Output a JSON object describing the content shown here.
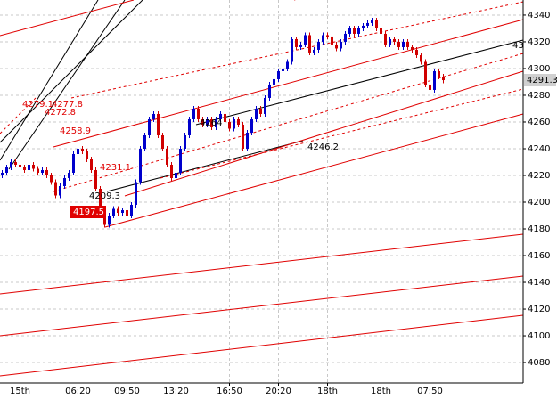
{
  "chart_data": {
    "type": "candlestick",
    "categories": [
      null,
      null,
      null,
      null,
      "15th",
      null,
      null,
      null,
      null,
      null,
      null,
      null,
      null,
      null,
      null,
      null,
      null,
      "06:20",
      null,
      null,
      null,
      null,
      null,
      null,
      null,
      null,
      null,
      null,
      "09:50",
      null,
      null,
      null,
      null,
      null,
      null,
      null,
      null,
      null,
      null,
      "13:20",
      null,
      null,
      null,
      null,
      null,
      null,
      null,
      null,
      null,
      null,
      null,
      "16:50",
      null,
      null,
      null,
      null,
      null,
      null,
      null,
      null,
      null,
      null,
      "20:20",
      null,
      null,
      null,
      null,
      null,
      null,
      null,
      null,
      null,
      null,
      "18th",
      null,
      null,
      null,
      null,
      null,
      null,
      null,
      null,
      null,
      null,
      null,
      "18th",
      null,
      null,
      null,
      null,
      null,
      null,
      null,
      null,
      null,
      null,
      "07:50",
      null,
      null,
      null
    ],
    "open": [
      4220,
      4222,
      4226,
      4230,
      4228,
      4226,
      4224,
      4228,
      4225,
      4222,
      4224,
      4220,
      4215,
      4205,
      4212,
      4218,
      4222,
      4236,
      4240,
      4238,
      4232,
      4224,
      4210,
      4195,
      4183,
      4190,
      4195,
      4192,
      4194,
      4190,
      4198,
      4215,
      4240,
      4250,
      4262,
      4266,
      4250,
      4240,
      4228,
      4218,
      4222,
      4240,
      4250,
      4262,
      4270,
      4262,
      4258,
      4262,
      4256,
      4262,
      4266,
      4260,
      4255,
      4262,
      4258,
      4240,
      4252,
      4262,
      4270,
      4266,
      4278,
      4288,
      4292,
      4298,
      4300,
      4305,
      4322,
      4316,
      4318,
      4325,
      4312,
      4314,
      4320,
      4325,
      4324,
      4318,
      4315,
      4320,
      4326,
      4330,
      4326,
      4330,
      4332,
      4334,
      4336,
      4330,
      4326,
      4318,
      4322,
      4320,
      4316,
      4320,
      4316,
      4314,
      4310,
      4305,
      4288,
      4284,
      4298,
      4294
    ],
    "high": [
      4224,
      4228,
      4232,
      4232,
      4230,
      4228,
      4230,
      4230,
      4227,
      4226,
      4226,
      4222,
      4217,
      4214,
      4220,
      4224,
      4238,
      4242,
      4242,
      4240,
      4234,
      4226,
      4212,
      4197,
      4192,
      4197,
      4197,
      4196,
      4196,
      4200,
      4217,
      4242,
      4252,
      4264,
      4268,
      4268,
      4252,
      4242,
      4230,
      4224,
      4242,
      4252,
      4264,
      4272,
      4272,
      4264,
      4264,
      4264,
      4264,
      4268,
      4268,
      4262,
      4264,
      4264,
      4260,
      4254,
      4264,
      4272,
      4272,
      4280,
      4290,
      4294,
      4300,
      4302,
      4307,
      4324,
      4324,
      4320,
      4327,
      4327,
      4316,
      4322,
      4327,
      4327,
      4326,
      4320,
      4322,
      4328,
      4332,
      4332,
      4332,
      4334,
      4336,
      4338,
      4338,
      4332,
      4328,
      4324,
      4324,
      4322,
      4322,
      4322,
      4318,
      4316,
      4312,
      4307,
      4290,
      4300,
      4300,
      4296
    ],
    "low": [
      4218,
      4220,
      4224,
      4226,
      4224,
      4222,
      4222,
      4223,
      4220,
      4220,
      4218,
      4213,
      4203,
      4203,
      4210,
      4216,
      4220,
      4234,
      4236,
      4230,
      4222,
      4208,
      4193,
      4181,
      4181,
      4188,
      4190,
      4190,
      4188,
      4188,
      4196,
      4213,
      4238,
      4248,
      4260,
      4248,
      4238,
      4226,
      4216,
      4216,
      4220,
      4238,
      4248,
      4260,
      4260,
      4256,
      4256,
      4254,
      4254,
      4260,
      4258,
      4253,
      4253,
      4256,
      4238,
      4238,
      4250,
      4260,
      4264,
      4264,
      4276,
      4286,
      4290,
      4296,
      4298,
      4303,
      4314,
      4314,
      4316,
      4310,
      4310,
      4312,
      4318,
      4322,
      4316,
      4313,
      4313,
      4318,
      4324,
      4324,
      4324,
      4328,
      4330,
      4332,
      4328,
      4324,
      4316,
      4316,
      4318,
      4314,
      4314,
      4314,
      4312,
      4308,
      4303,
      4286,
      4281,
      4282,
      4292,
      4289
    ],
    "close": [
      4222,
      4226,
      4230,
      4228,
      4226,
      4224,
      4228,
      4225,
      4222,
      4224,
      4220,
      4215,
      4205,
      4212,
      4218,
      4222,
      4236,
      4240,
      4238,
      4232,
      4224,
      4210,
      4195,
      4183,
      4190,
      4195,
      4192,
      4194,
      4190,
      4198,
      4215,
      4240,
      4250,
      4262,
      4266,
      4250,
      4240,
      4228,
      4218,
      4222,
      4240,
      4250,
      4262,
      4270,
      4262,
      4258,
      4262,
      4256,
      4262,
      4266,
      4260,
      4255,
      4262,
      4258,
      4240,
      4252,
      4262,
      4270,
      4266,
      4278,
      4288,
      4292,
      4298,
      4300,
      4305,
      4322,
      4316,
      4318,
      4325,
      4312,
      4314,
      4320,
      4325,
      4324,
      4318,
      4315,
      4320,
      4326,
      4330,
      4326,
      4330,
      4332,
      4334,
      4336,
      4330,
      4326,
      4318,
      4322,
      4320,
      4316,
      4320,
      4316,
      4314,
      4310,
      4305,
      4288,
      4284,
      4298,
      4294,
      4291.3
    ],
    "up_color": "#0000cc",
    "down_color": "#d00000",
    "ylim": [
      4064.7,
      4351.3
    ],
    "yticks": [
      4080,
      4100,
      4120,
      4140,
      4160,
      4180,
      4200,
      4220,
      4240,
      4260,
      4280,
      4300,
      4320,
      4340
    ],
    "grid": true,
    "current_price": "4291.3",
    "annotations": [
      "4279.1",
      "4277.8",
      "4272.8",
      "4258.9",
      "4231.1",
      "4209.3",
      "4197.5",
      "4264",
      "4246.2",
      "43"
    ]
  }
}
